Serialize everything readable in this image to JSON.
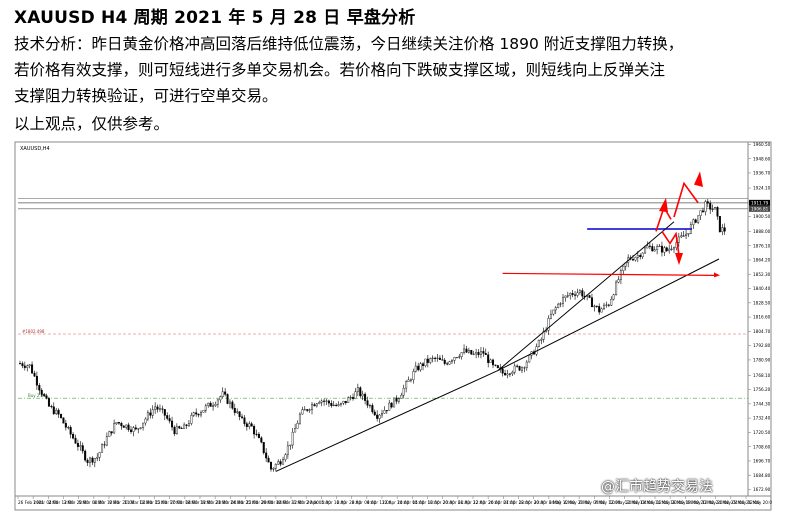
{
  "title": "XAUUSD    H4 周期    2021 年 5 月 28 日  早盘分析",
  "analysis_lines": [
    "技术分析：昨日黄金价格冲高回落后维持低位震荡，今日继续关注价格 1890 附近支撑阻力转换，",
    "若价格有效支撑，则可短线进行多单交易机会。若价格向下跌破支撑区域，则短线向上反弹关注",
    "支撑阻力转换验证，可进行空单交易。",
    "以上观点，仅供参考。"
  ],
  "watermark": "@汇市趋势交易法",
  "colors": {
    "candle": "#000000",
    "trendline": "#000000",
    "support_blue": "#0000cc",
    "level_red": "#ff0000",
    "arrow_red": "#ff0000",
    "grid_dash_red": "#d96060",
    "grid_dash_green": "#4aa04a"
  },
  "chart_data": {
    "type": "candlestick",
    "symbol_label": "XAUUSD,H4",
    "ylim": [
      1670,
      1960
    ],
    "y_ticks": [
      "1960.50",
      "1948.60",
      "1936.70",
      "1924.10",
      "1912.30",
      "1900.50",
      "1888.00",
      "1876.10",
      "1864.20",
      "1852.30",
      "1840.40",
      "1828.50",
      "1816.60",
      "1804.70",
      "1792.80",
      "1780.90",
      "1768.10",
      "1756.20",
      "1744.30",
      "1732.40",
      "1720.50",
      "1708.60",
      "1696.70",
      "1684.80",
      "1672.90"
    ],
    "x_ticks": [
      "26 Feb 2021",
      "1 Mar 04:00",
      "2 Mar 12:00",
      "3 Mar 20:00",
      "5 Mar 04:00",
      "8 Mar 12:00",
      "9 Mar 20:00",
      "11 Mar 04:00",
      "12 Mar 12:00",
      "15 Mar 20:00",
      "17 Mar 04:00",
      "18 Mar 12:00",
      "19 Mar 20:00",
      "23 Mar 04:00",
      "24 Mar 12:00",
      "25 Mar 20:00",
      "29 Mar 04:00",
      "30 Mar 12:00",
      "31 Mar 20:00",
      "2 Apr 04:00",
      "5 Apr 12:00",
      "6 Apr 20:00",
      "8 Apr 04:00",
      "9 Apr 12:00",
      "12 Apr 20:00",
      "14 Apr 04:00",
      "15 Apr 12:00",
      "16 Apr 20:00",
      "20 Apr 04:00",
      "21 Apr 12:00",
      "22 Apr 20:00",
      "26 Apr 04:00",
      "27 Apr 12:00",
      "28 Apr 20:00",
      "30 Apr 04:00",
      "3 May 12:00",
      "4 May 20:00",
      "6 May 04:00",
      "7 May 12:00",
      "10 May 20:00",
      "12 May 04:00",
      "13 May 12:00",
      "14 May 20:00",
      "18 May 04:00",
      "19 May 12:00",
      "20 May 20:00",
      "24 May 04:00",
      "25 May 12:00",
      "26 May 20:00"
    ],
    "price_labels": [
      "1911.79",
      "1906.81"
    ],
    "annotations": [
      "#1802.498",
      "Buy 2.98"
    ],
    "close_path": [
      [
        0,
        1778
      ],
      [
        4,
        1776
      ],
      [
        8,
        1758
      ],
      [
        12,
        1742
      ],
      [
        16,
        1735
      ],
      [
        20,
        1722
      ],
      [
        24,
        1710
      ],
      [
        28,
        1697
      ],
      [
        32,
        1700
      ],
      [
        36,
        1716
      ],
      [
        40,
        1729
      ],
      [
        44,
        1726
      ],
      [
        48,
        1722
      ],
      [
        52,
        1732
      ],
      [
        56,
        1742
      ],
      [
        60,
        1735
      ],
      [
        64,
        1722
      ],
      [
        68,
        1724
      ],
      [
        72,
        1735
      ],
      [
        76,
        1740
      ],
      [
        80,
        1745
      ],
      [
        84,
        1752
      ],
      [
        88,
        1742
      ],
      [
        92,
        1730
      ],
      [
        96,
        1725
      ],
      [
        100,
        1710
      ],
      [
        104,
        1690
      ],
      [
        108,
        1697
      ],
      [
        112,
        1712
      ],
      [
        116,
        1735
      ],
      [
        120,
        1742
      ],
      [
        124,
        1748
      ],
      [
        128,
        1745
      ],
      [
        132,
        1742
      ],
      [
        136,
        1748
      ],
      [
        140,
        1755
      ],
      [
        144,
        1745
      ],
      [
        148,
        1735
      ],
      [
        152,
        1741
      ],
      [
        156,
        1748
      ],
      [
        160,
        1760
      ],
      [
        164,
        1773
      ],
      [
        168,
        1779
      ],
      [
        172,
        1782
      ],
      [
        176,
        1778
      ],
      [
        180,
        1784
      ],
      [
        184,
        1788
      ],
      [
        188,
        1785
      ],
      [
        192,
        1787
      ],
      [
        196,
        1775
      ],
      [
        200,
        1770
      ],
      [
        204,
        1773
      ],
      [
        208,
        1775
      ],
      [
        212,
        1785
      ],
      [
        216,
        1798
      ],
      [
        220,
        1818
      ],
      [
        224,
        1830
      ],
      [
        228,
        1836
      ],
      [
        232,
        1838
      ],
      [
        236,
        1830
      ],
      [
        240,
        1822
      ],
      [
        244,
        1828
      ],
      [
        248,
        1848
      ],
      [
        252,
        1865
      ],
      [
        256,
        1868
      ],
      [
        260,
        1875
      ],
      [
        264,
        1874
      ],
      [
        268,
        1872
      ],
      [
        272,
        1879
      ],
      [
        276,
        1886
      ],
      [
        280,
        1898
      ],
      [
        284,
        1910
      ],
      [
        288,
        1906
      ],
      [
        290,
        1890
      ],
      [
        292,
        1889
      ]
    ],
    "levels": [
      {
        "color": "blue",
        "y": 1890
      },
      {
        "color": "red",
        "y": 1853
      }
    ]
  }
}
